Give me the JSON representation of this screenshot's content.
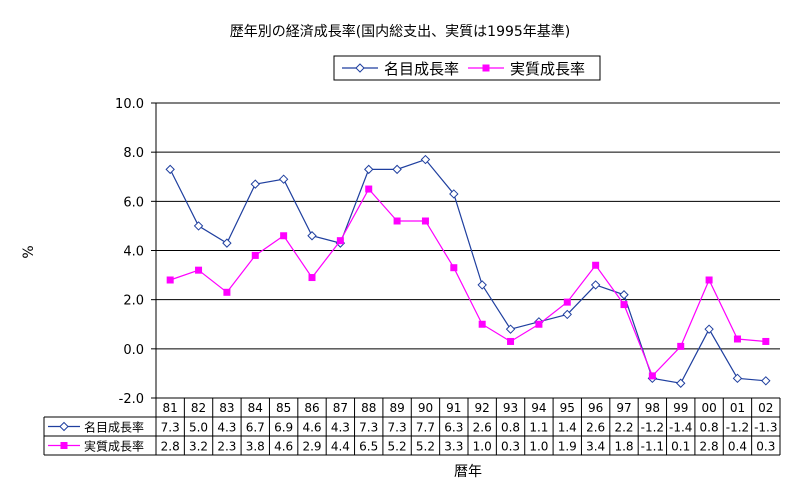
{
  "chart_data": {
    "type": "line",
    "title": "歴年別の経済成長率(国内総支出、実質は1995年基準)",
    "xlabel": "暦年",
    "ylabel": "%",
    "ylim": [
      -2.0,
      10.0
    ],
    "y_ticks": [
      "10.0",
      "8.0",
      "6.0",
      "4.0",
      "2.0",
      "0.0",
      "-2.0"
    ],
    "grid": true,
    "legend_position": "top-right",
    "categories": [
      "81",
      "82",
      "83",
      "84",
      "85",
      "86",
      "87",
      "88",
      "89",
      "90",
      "91",
      "92",
      "93",
      "94",
      "95",
      "96",
      "97",
      "98",
      "99",
      "00",
      "01",
      "02"
    ],
    "series": [
      {
        "name": "名目成長率",
        "color": "#1f3f9f",
        "marker": "diamond",
        "values": [
          7.3,
          5.0,
          4.3,
          6.7,
          6.9,
          4.6,
          4.3,
          7.3,
          7.3,
          7.7,
          6.3,
          2.6,
          0.8,
          1.1,
          1.4,
          2.6,
          2.2,
          -1.2,
          -1.4,
          0.8,
          -1.2,
          -1.3
        ],
        "labels": [
          "7.3",
          "5.0",
          "4.3",
          "6.7",
          "6.9",
          "4.6",
          "4.3",
          "7.3",
          "7.3",
          "7.7",
          "6.3",
          "2.6",
          "0.8",
          "1.1",
          "1.4",
          "2.6",
          "2.2",
          "-1.2",
          "-1.4",
          "0.8",
          "-1.2",
          "-1.3"
        ]
      },
      {
        "name": "実質成長率",
        "color": "#ff00ff",
        "marker": "square",
        "values": [
          2.8,
          3.2,
          2.3,
          3.8,
          4.6,
          2.9,
          4.4,
          6.5,
          5.2,
          5.2,
          3.3,
          1.0,
          0.3,
          1.0,
          1.9,
          3.4,
          1.8,
          -1.1,
          0.1,
          2.8,
          0.4,
          0.3
        ],
        "labels": [
          "2.8",
          "3.2",
          "2.3",
          "3.8",
          "4.6",
          "2.9",
          "4.4",
          "6.5",
          "5.2",
          "5.2",
          "3.3",
          "1.0",
          "0.3",
          "1.0",
          "1.9",
          "3.4",
          "1.8",
          "-1.1",
          "0.1",
          "2.8",
          "0.4",
          "0.3"
        ]
      }
    ]
  }
}
